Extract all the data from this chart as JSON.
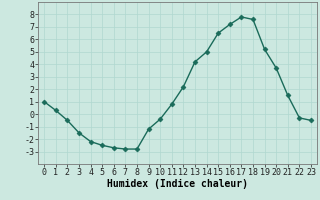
{
  "x": [
    0,
    1,
    2,
    3,
    4,
    5,
    6,
    7,
    8,
    9,
    10,
    11,
    12,
    13,
    14,
    15,
    16,
    17,
    18,
    19,
    20,
    21,
    22,
    23
  ],
  "y": [
    1.0,
    0.3,
    -0.5,
    -1.5,
    -2.2,
    -2.5,
    -2.7,
    -2.8,
    -2.8,
    -1.2,
    -0.4,
    0.8,
    2.2,
    4.2,
    5.0,
    6.5,
    7.2,
    7.8,
    7.6,
    5.2,
    3.7,
    1.5,
    -0.3,
    -0.5
  ],
  "line_color": "#1a6b5a",
  "marker_color": "#1a6b5a",
  "bg_color": "#cce8e0",
  "grid_color": "#b0d8d0",
  "xlabel": "Humidex (Indice chaleur)",
  "ylim": [
    -4,
    9
  ],
  "yticks": [
    -3,
    -2,
    -1,
    0,
    1,
    2,
    3,
    4,
    5,
    6,
    7,
    8
  ],
  "xticks": [
    0,
    1,
    2,
    3,
    4,
    5,
    6,
    7,
    8,
    9,
    10,
    11,
    12,
    13,
    14,
    15,
    16,
    17,
    18,
    19,
    20,
    21,
    22,
    23
  ],
  "xlabel_fontsize": 7,
  "tick_fontsize": 6,
  "marker_size": 2.5,
  "line_width": 1.0
}
